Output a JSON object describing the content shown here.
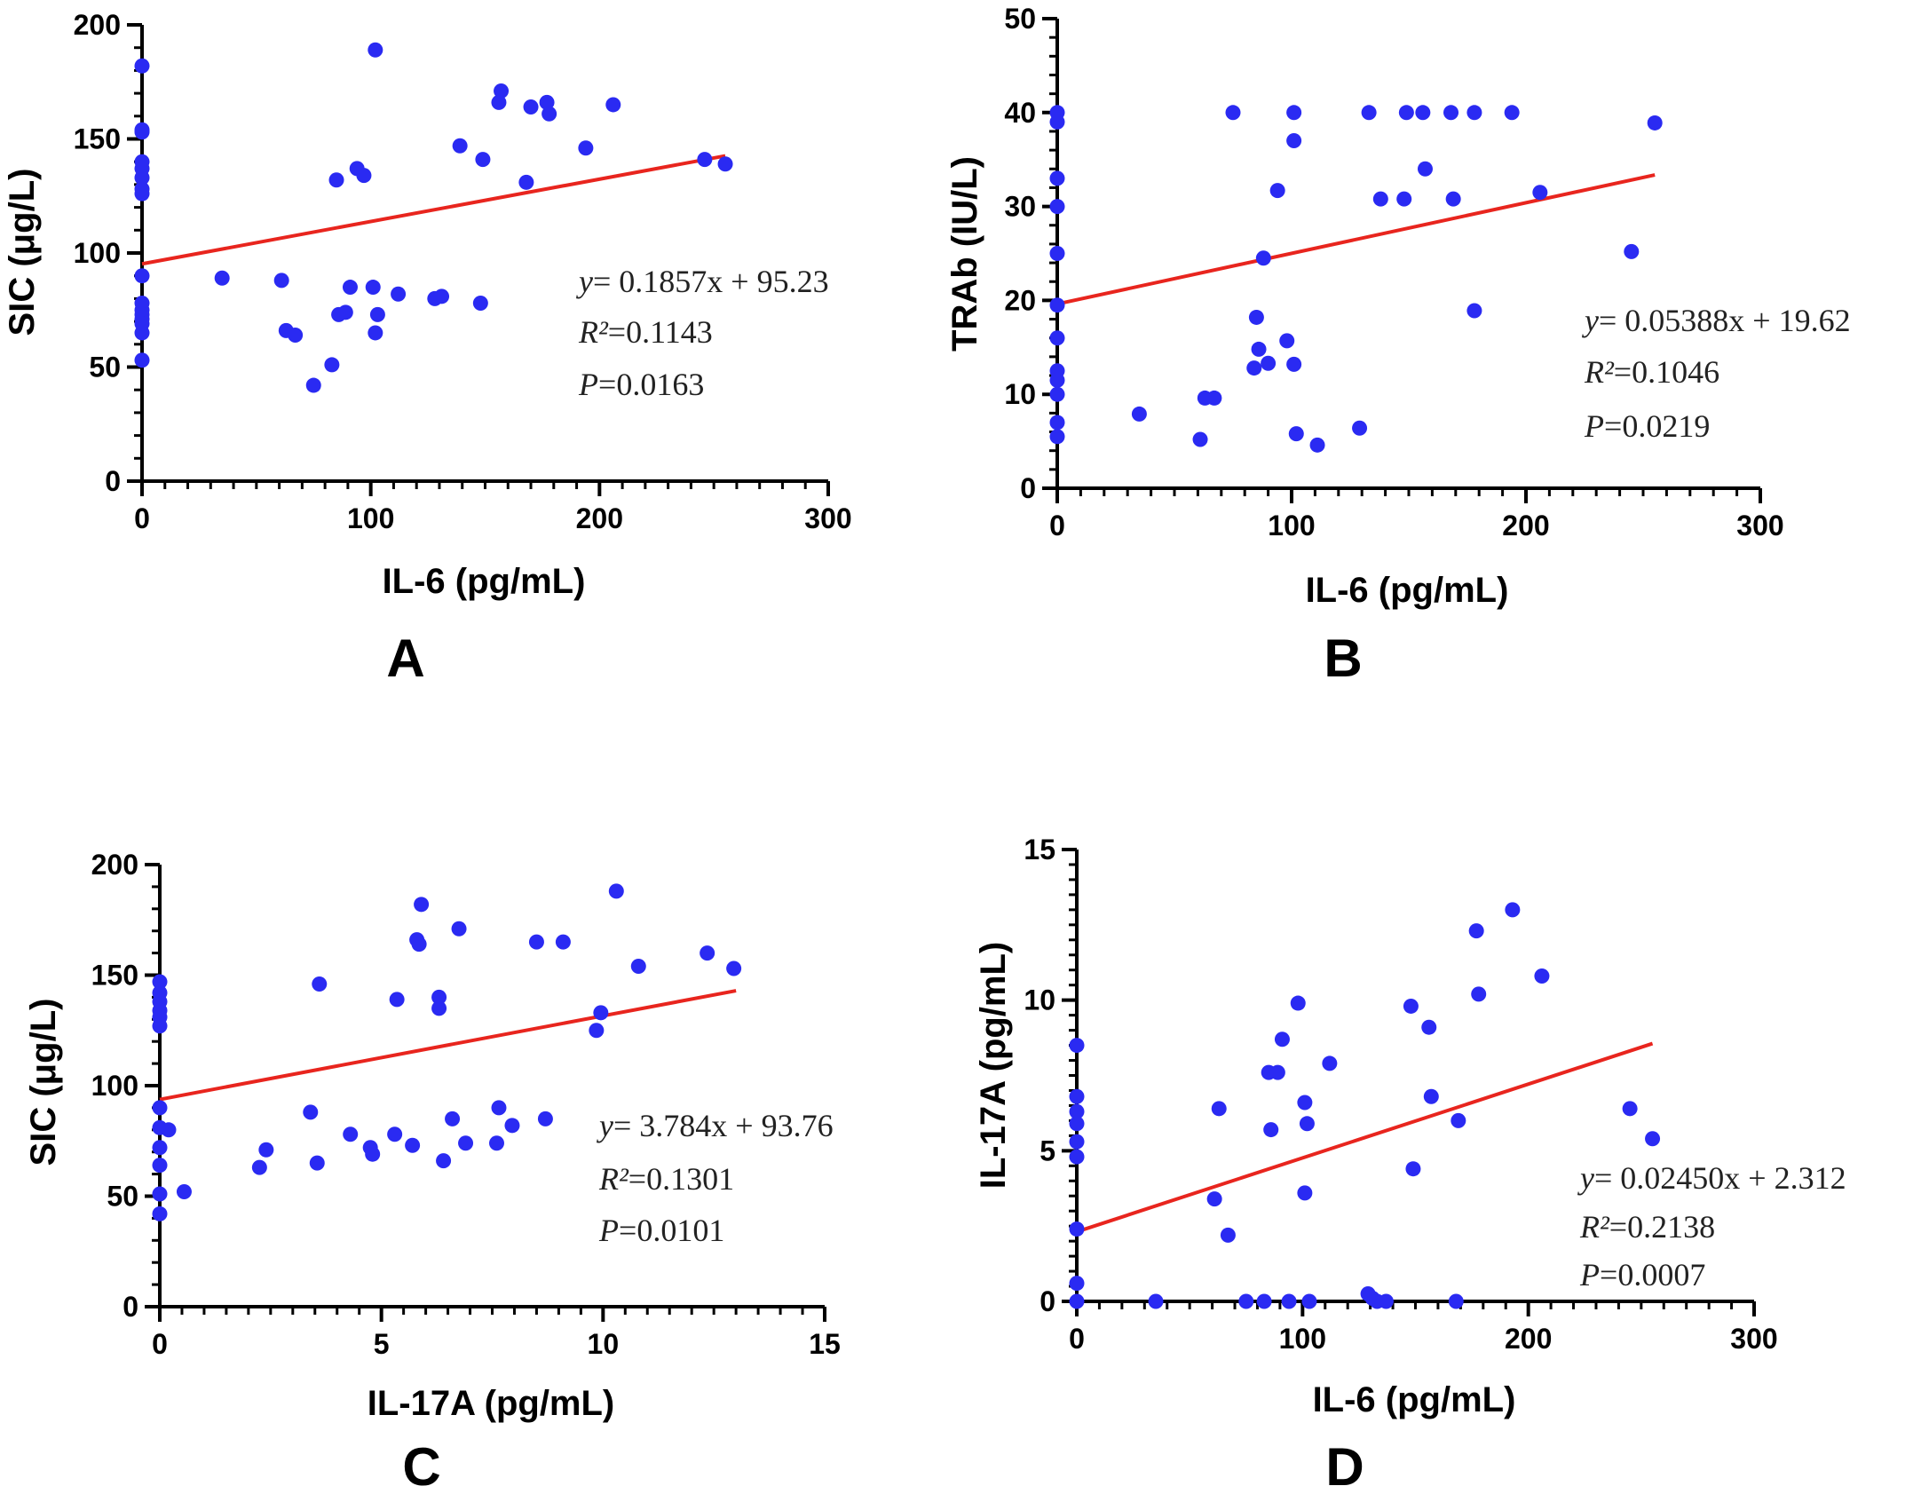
{
  "chart_data": [
    {
      "id": "A",
      "type": "scatter",
      "panel_label": "A",
      "xlabel": "IL-6 (pg/mL)",
      "ylabel": "SIC (μg/L)",
      "xlim": [
        0,
        300
      ],
      "ylim": [
        0,
        200
      ],
      "xticks": [
        0,
        100,
        200,
        300
      ],
      "yticks": [
        0,
        50,
        100,
        150,
        200
      ],
      "x_minor_step": 10,
      "y_minor_step": 10,
      "fit": {
        "slope": 0.1857,
        "intercept": 95.23,
        "x_range": [
          0,
          255
        ]
      },
      "annotation": {
        "equation": "0.1857x + 95.23",
        "r2": "0.1143",
        "p": "0.0163"
      },
      "points": [
        [
          0,
          182
        ],
        [
          0,
          154
        ],
        [
          0,
          153
        ],
        [
          0,
          140
        ],
        [
          0,
          137
        ],
        [
          0,
          133
        ],
        [
          0,
          128
        ],
        [
          0,
          126
        ],
        [
          0,
          90
        ],
        [
          0,
          78
        ],
        [
          0,
          75
        ],
        [
          0,
          73
        ],
        [
          0,
          71
        ],
        [
          0,
          69
        ],
        [
          0,
          65
        ],
        [
          0,
          53
        ],
        [
          35,
          89
        ],
        [
          61,
          88
        ],
        [
          63,
          66
        ],
        [
          67,
          64
        ],
        [
          75,
          42
        ],
        [
          83,
          51
        ],
        [
          85,
          132
        ],
        [
          86,
          73
        ],
        [
          89,
          74
        ],
        [
          91,
          85
        ],
        [
          94,
          137
        ],
        [
          97,
          134
        ],
        [
          101,
          85
        ],
        [
          102,
          65
        ],
        [
          102,
          189
        ],
        [
          103,
          73
        ],
        [
          112,
          82
        ],
        [
          128,
          80
        ],
        [
          131,
          81
        ],
        [
          139,
          147
        ],
        [
          148,
          78
        ],
        [
          149,
          141
        ],
        [
          156,
          166
        ],
        [
          157,
          171
        ],
        [
          168,
          131
        ],
        [
          170,
          164
        ],
        [
          177,
          166
        ],
        [
          178,
          161
        ],
        [
          194,
          146
        ],
        [
          206,
          165
        ],
        [
          246,
          141
        ],
        [
          255,
          139
        ]
      ]
    },
    {
      "id": "B",
      "type": "scatter",
      "panel_label": "B",
      "xlabel": "IL-6 (pg/mL)",
      "ylabel": "TRAb (IU/L)",
      "xlim": [
        0,
        300
      ],
      "ylim": [
        0,
        50
      ],
      "xticks": [
        0,
        100,
        200,
        300
      ],
      "yticks": [
        0,
        10,
        20,
        30,
        40,
        50
      ],
      "x_minor_step": 10,
      "y_minor_step": 2,
      "fit": {
        "slope": 0.05388,
        "intercept": 19.62,
        "x_range": [
          0,
          255
        ]
      },
      "annotation": {
        "equation": "0.05388x + 19.62",
        "r2": "0.1046",
        "p": "0.0219"
      },
      "points": [
        [
          0,
          40
        ],
        [
          0,
          39
        ],
        [
          0,
          33
        ],
        [
          0,
          30
        ],
        [
          0,
          25
        ],
        [
          0,
          19.5
        ],
        [
          0,
          16
        ],
        [
          0,
          12.5
        ],
        [
          0,
          11.5
        ],
        [
          0,
          10
        ],
        [
          0,
          7
        ],
        [
          0,
          5.5
        ],
        [
          35,
          7.9
        ],
        [
          61,
          5.2
        ],
        [
          63,
          9.6
        ],
        [
          67,
          9.6
        ],
        [
          75,
          40
        ],
        [
          84,
          12.8
        ],
        [
          85,
          18.2
        ],
        [
          86,
          14.8
        ],
        [
          88,
          24.5
        ],
        [
          90,
          13.3
        ],
        [
          94,
          31.7
        ],
        [
          98,
          15.7
        ],
        [
          101,
          13.2
        ],
        [
          101,
          37
        ],
        [
          101,
          40
        ],
        [
          102,
          5.8
        ],
        [
          111,
          4.6
        ],
        [
          129,
          6.4
        ],
        [
          133,
          40
        ],
        [
          138,
          30.8
        ],
        [
          148,
          30.8
        ],
        [
          149,
          40
        ],
        [
          156,
          40
        ],
        [
          157,
          34
        ],
        [
          168,
          40
        ],
        [
          169,
          30.8
        ],
        [
          178,
          40
        ],
        [
          178,
          18.9
        ],
        [
          194,
          40
        ],
        [
          206,
          31.5
        ],
        [
          245,
          25.2
        ],
        [
          255,
          38.9
        ]
      ]
    },
    {
      "id": "C",
      "type": "scatter",
      "panel_label": "C",
      "xlabel": "IL-17A (pg/mL)",
      "ylabel": "SIC (μg/L)",
      "xlim": [
        0,
        15
      ],
      "ylim": [
        0,
        200
      ],
      "xticks": [
        0,
        5,
        10,
        15
      ],
      "yticks": [
        0,
        50,
        100,
        150,
        200
      ],
      "x_minor_step": 0.5,
      "y_minor_step": 10,
      "fit": {
        "slope": 3.784,
        "intercept": 93.76,
        "x_range": [
          0,
          13
        ]
      },
      "annotation": {
        "equation": "3.784x + 93.76",
        "r2": "0.1301",
        "p": "0.0101"
      },
      "points": [
        [
          0,
          147
        ],
        [
          0,
          142
        ],
        [
          0,
          138
        ],
        [
          0,
          134
        ],
        [
          0,
          131
        ],
        [
          0,
          127
        ],
        [
          0,
          90
        ],
        [
          0,
          81
        ],
        [
          0,
          72
        ],
        [
          0,
          64
        ],
        [
          0,
          51
        ],
        [
          0,
          42
        ],
        [
          0.2,
          80
        ],
        [
          0.55,
          52
        ],
        [
          2.25,
          63
        ],
        [
          2.4,
          71
        ],
        [
          3.4,
          88
        ],
        [
          3.55,
          65
        ],
        [
          3.6,
          146
        ],
        [
          4.3,
          78
        ],
        [
          4.75,
          72
        ],
        [
          4.8,
          69
        ],
        [
          5.3,
          78
        ],
        [
          5.35,
          139
        ],
        [
          5.7,
          73
        ],
        [
          5.8,
          166
        ],
        [
          5.85,
          164
        ],
        [
          5.9,
          182
        ],
        [
          6.3,
          135
        ],
        [
          6.3,
          140
        ],
        [
          6.4,
          66
        ],
        [
          6.6,
          85
        ],
        [
          6.75,
          171
        ],
        [
          6.9,
          74
        ],
        [
          7.6,
          74
        ],
        [
          7.65,
          90
        ],
        [
          7.95,
          82
        ],
        [
          8.5,
          165
        ],
        [
          8.7,
          85
        ],
        [
          9.1,
          165
        ],
        [
          9.85,
          125
        ],
        [
          9.95,
          133
        ],
        [
          10.3,
          188
        ],
        [
          10.8,
          154
        ],
        [
          12.35,
          160
        ],
        [
          12.95,
          153
        ]
      ]
    },
    {
      "id": "D",
      "type": "scatter",
      "panel_label": "D",
      "xlabel": "IL-6 (pg/mL)",
      "ylabel": "IL-17A (pg/mL)",
      "xlim": [
        0,
        300
      ],
      "ylim": [
        0,
        15
      ],
      "xticks": [
        0,
        100,
        200,
        300
      ],
      "yticks": [
        0,
        5,
        10,
        15
      ],
      "x_minor_step": 10,
      "y_minor_step": 0.5,
      "fit": {
        "slope": 0.0245,
        "intercept": 2.312,
        "x_range": [
          0,
          255
        ]
      },
      "annotation": {
        "equation": "0.02450x + 2.312",
        "r2": "0.2138",
        "p": "0.0007"
      },
      "points": [
        [
          0,
          8.5
        ],
        [
          0,
          6.8
        ],
        [
          0,
          6.3
        ],
        [
          0,
          5.9
        ],
        [
          0,
          5.3
        ],
        [
          0,
          4.8
        ],
        [
          0,
          2.4
        ],
        [
          0,
          0.6
        ],
        [
          0,
          0
        ],
        [
          35,
          0
        ],
        [
          61,
          3.4
        ],
        [
          63,
          6.4
        ],
        [
          67,
          2.2
        ],
        [
          75,
          0
        ],
        [
          83,
          0
        ],
        [
          85,
          7.6
        ],
        [
          86,
          5.7
        ],
        [
          89,
          7.6
        ],
        [
          91,
          8.7
        ],
        [
          94,
          0
        ],
        [
          98,
          9.9
        ],
        [
          101,
          6.6
        ],
        [
          101,
          3.6
        ],
        [
          102,
          5.9
        ],
        [
          103,
          0
        ],
        [
          112,
          7.9
        ],
        [
          129,
          0.25
        ],
        [
          131,
          0.1
        ],
        [
          133,
          0
        ],
        [
          137,
          0
        ],
        [
          148,
          9.8
        ],
        [
          149,
          4.4
        ],
        [
          156,
          9.1
        ],
        [
          157,
          6.8
        ],
        [
          168,
          0
        ],
        [
          169,
          6.0
        ],
        [
          177,
          12.3
        ],
        [
          178,
          10.2
        ],
        [
          193,
          13.0
        ],
        [
          206,
          10.8
        ],
        [
          245,
          6.4
        ],
        [
          255,
          5.4
        ]
      ]
    }
  ],
  "colors": {
    "points": "#2a2af2",
    "fit_line": "#e8251e",
    "axes": "#000000"
  }
}
